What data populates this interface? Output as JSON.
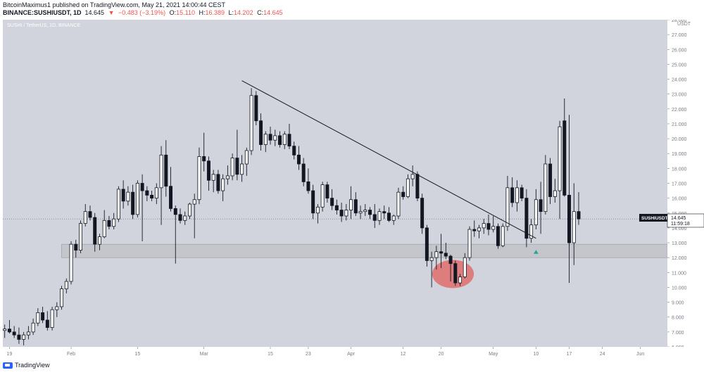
{
  "header": {
    "line1": "BitcoinMaximus1 published on TradingView.com, May 21, 2021 14:00:44 CEST",
    "symbol": "BINANCE:SUSHIUSDT, 1D",
    "last": "14.645",
    "change": "−0.483 (−3.19%)",
    "o_label": "O:",
    "o": "15.110",
    "h_label": "H:",
    "h": "16.389",
    "l_label": "L:",
    "l": "14.202",
    "c_label": "C:",
    "c": "14.645"
  },
  "pane_label": "SUSHI / TetherUS, 1D, BINANCE",
  "price_tag": {
    "symbol": "SUSHIUSDT",
    "price": "14.645",
    "countdown": "11:59:18"
  },
  "footer": {
    "brand": "TradingView"
  },
  "colors": {
    "bull": "#ffffff",
    "bear": "#131722",
    "plot_bg": "#d1d4dc",
    "zone": "#c4c6cc",
    "ellipse": "#e06666",
    "arrow": "#26a69a"
  },
  "chart_data": {
    "type": "candlestick",
    "y_unit": "USDT",
    "ylim": [
      6.0,
      28.0
    ],
    "y_ticks": [
      "6.000",
      "7.000",
      "8.000",
      "9.000",
      "10.000",
      "11.000",
      "12.000",
      "13.000",
      "14.000",
      "15.000",
      "16.000",
      "17.000",
      "18.000",
      "19.000",
      "20.000",
      "21.000",
      "22.000",
      "23.000",
      "24.000",
      "25.000",
      "26.000",
      "27.000",
      "28.000"
    ],
    "x_ticks": [
      {
        "label": "19",
        "day": 0
      },
      {
        "label": "Feb",
        "day": 13
      },
      {
        "label": "15",
        "day": 27
      },
      {
        "label": "Mar",
        "day": 41
      },
      {
        "label": "15",
        "day": 55
      },
      {
        "label": "23",
        "day": 63
      },
      {
        "label": "Apr",
        "day": 72
      },
      {
        "label": "12",
        "day": 83
      },
      {
        "label": "20",
        "day": 91
      },
      {
        "label": "May",
        "day": 102
      },
      {
        "label": "10",
        "day": 111
      },
      {
        "label": "17",
        "day": 118
      },
      {
        "label": "24",
        "day": 125
      },
      {
        "label": "Jun",
        "day": 133
      }
    ],
    "x_range_days": [
      -1.4,
      138.7
    ],
    "candles": [
      {
        "d": -1,
        "o": 7.1,
        "h": 7.5,
        "l": 6.6,
        "c": 7.2
      },
      {
        "d": 0,
        "o": 7.2,
        "h": 7.8,
        "l": 6.9,
        "c": 7.0
      },
      {
        "d": 1,
        "o": 7.0,
        "h": 7.4,
        "l": 6.6,
        "c": 6.8
      },
      {
        "d": 2,
        "o": 6.8,
        "h": 7.3,
        "l": 6.2,
        "c": 6.5
      },
      {
        "d": 3,
        "o": 6.5,
        "h": 7.0,
        "l": 6.1,
        "c": 6.8
      },
      {
        "d": 4,
        "o": 6.8,
        "h": 7.4,
        "l": 6.5,
        "c": 7.0
      },
      {
        "d": 5,
        "o": 7.0,
        "h": 7.9,
        "l": 6.8,
        "c": 7.6
      },
      {
        "d": 6,
        "o": 7.6,
        "h": 8.6,
        "l": 7.4,
        "c": 8.3
      },
      {
        "d": 7,
        "o": 8.3,
        "h": 8.7,
        "l": 7.6,
        "c": 7.8
      },
      {
        "d": 8,
        "o": 7.8,
        "h": 8.4,
        "l": 7.1,
        "c": 7.3
      },
      {
        "d": 9,
        "o": 7.3,
        "h": 8.7,
        "l": 7.1,
        "c": 8.5
      },
      {
        "d": 10,
        "o": 8.5,
        "h": 9.0,
        "l": 8.0,
        "c": 8.7
      },
      {
        "d": 11,
        "o": 8.7,
        "h": 10.1,
        "l": 8.5,
        "c": 9.9
      },
      {
        "d": 12,
        "o": 9.9,
        "h": 10.6,
        "l": 9.6,
        "c": 10.4
      },
      {
        "d": 13,
        "o": 10.4,
        "h": 13.1,
        "l": 10.2,
        "c": 12.9
      },
      {
        "d": 14,
        "o": 12.9,
        "h": 13.2,
        "l": 12.0,
        "c": 12.5
      },
      {
        "d": 15,
        "o": 12.5,
        "h": 14.5,
        "l": 12.3,
        "c": 14.3
      },
      {
        "d": 16,
        "o": 14.3,
        "h": 15.6,
        "l": 14.1,
        "c": 15.1
      },
      {
        "d": 17,
        "o": 15.1,
        "h": 15.5,
        "l": 14.5,
        "c": 14.7
      },
      {
        "d": 18,
        "o": 14.7,
        "h": 15.0,
        "l": 12.4,
        "c": 12.9
      },
      {
        "d": 19,
        "o": 12.9,
        "h": 13.6,
        "l": 12.5,
        "c": 13.4
      },
      {
        "d": 20,
        "o": 13.4,
        "h": 15.2,
        "l": 13.3,
        "c": 14.5
      },
      {
        "d": 21,
        "o": 14.5,
        "h": 14.8,
        "l": 13.9,
        "c": 14.1
      },
      {
        "d": 22,
        "o": 14.1,
        "h": 15.0,
        "l": 13.9,
        "c": 14.6
      },
      {
        "d": 23,
        "o": 14.6,
        "h": 16.8,
        "l": 14.4,
        "c": 16.6
      },
      {
        "d": 24,
        "o": 16.6,
        "h": 17.2,
        "l": 15.3,
        "c": 15.8
      },
      {
        "d": 25,
        "o": 15.8,
        "h": 16.8,
        "l": 15.5,
        "c": 16.4
      },
      {
        "d": 26,
        "o": 16.4,
        "h": 16.9,
        "l": 14.6,
        "c": 14.9
      },
      {
        "d": 27,
        "o": 14.9,
        "h": 17.2,
        "l": 14.7,
        "c": 17.0
      },
      {
        "d": 28,
        "o": 17.0,
        "h": 17.6,
        "l": 13.1,
        "c": 16.5
      },
      {
        "d": 29,
        "o": 16.5,
        "h": 16.8,
        "l": 15.8,
        "c": 16.2
      },
      {
        "d": 30,
        "o": 16.2,
        "h": 16.5,
        "l": 15.8,
        "c": 16.0
      },
      {
        "d": 31,
        "o": 16.0,
        "h": 17.0,
        "l": 15.6,
        "c": 16.7
      },
      {
        "d": 32,
        "o": 16.7,
        "h": 19.5,
        "l": 14.2,
        "c": 18.9
      },
      {
        "d": 33,
        "o": 18.9,
        "h": 19.9,
        "l": 16.1,
        "c": 16.8
      },
      {
        "d": 34,
        "o": 16.8,
        "h": 18.1,
        "l": 15.1,
        "c": 15.3
      },
      {
        "d": 35,
        "o": 15.3,
        "h": 15.5,
        "l": 11.6,
        "c": 14.9
      },
      {
        "d": 36,
        "o": 14.9,
        "h": 15.3,
        "l": 14.3,
        "c": 14.5
      },
      {
        "d": 37,
        "o": 14.5,
        "h": 15.1,
        "l": 14.2,
        "c": 14.8
      },
      {
        "d": 38,
        "o": 14.8,
        "h": 15.7,
        "l": 14.6,
        "c": 15.6
      },
      {
        "d": 39,
        "o": 15.6,
        "h": 16.3,
        "l": 13.3,
        "c": 15.9
      },
      {
        "d": 40,
        "o": 15.9,
        "h": 19.4,
        "l": 15.6,
        "c": 18.8
      },
      {
        "d": 41,
        "o": 18.8,
        "h": 20.4,
        "l": 17.8,
        "c": 18.5
      },
      {
        "d": 42,
        "o": 18.5,
        "h": 18.8,
        "l": 16.5,
        "c": 17.2
      },
      {
        "d": 43,
        "o": 17.2,
        "h": 17.9,
        "l": 16.4,
        "c": 17.6
      },
      {
        "d": 44,
        "o": 17.6,
        "h": 17.9,
        "l": 16.3,
        "c": 16.5
      },
      {
        "d": 45,
        "o": 16.5,
        "h": 17.6,
        "l": 15.8,
        "c": 17.3
      },
      {
        "d": 46,
        "o": 17.3,
        "h": 18.2,
        "l": 16.9,
        "c": 17.5
      },
      {
        "d": 47,
        "o": 17.5,
        "h": 19.0,
        "l": 17.2,
        "c": 18.7
      },
      {
        "d": 48,
        "o": 18.7,
        "h": 20.6,
        "l": 17.2,
        "c": 17.6
      },
      {
        "d": 49,
        "o": 17.6,
        "h": 18.9,
        "l": 17.1,
        "c": 18.3
      },
      {
        "d": 50,
        "o": 18.3,
        "h": 19.4,
        "l": 17.5,
        "c": 19.2
      },
      {
        "d": 51,
        "o": 19.2,
        "h": 23.4,
        "l": 18.9,
        "c": 22.9
      },
      {
        "d": 52,
        "o": 22.9,
        "h": 23.2,
        "l": 20.9,
        "c": 21.2
      },
      {
        "d": 53,
        "o": 21.2,
        "h": 21.7,
        "l": 19.2,
        "c": 19.6
      },
      {
        "d": 54,
        "o": 19.6,
        "h": 20.5,
        "l": 19.1,
        "c": 20.3
      },
      {
        "d": 55,
        "o": 20.3,
        "h": 20.8,
        "l": 19.6,
        "c": 19.9
      },
      {
        "d": 56,
        "o": 19.9,
        "h": 20.6,
        "l": 19.5,
        "c": 20.2
      },
      {
        "d": 57,
        "o": 20.2,
        "h": 20.5,
        "l": 19.4,
        "c": 19.6
      },
      {
        "d": 58,
        "o": 19.6,
        "h": 20.5,
        "l": 19.3,
        "c": 20.3
      },
      {
        "d": 59,
        "o": 20.3,
        "h": 21.0,
        "l": 19.3,
        "c": 19.5
      },
      {
        "d": 60,
        "o": 19.5,
        "h": 19.8,
        "l": 18.6,
        "c": 18.9
      },
      {
        "d": 61,
        "o": 18.9,
        "h": 19.5,
        "l": 17.9,
        "c": 18.3
      },
      {
        "d": 62,
        "o": 18.3,
        "h": 18.7,
        "l": 16.8,
        "c": 17.1
      },
      {
        "d": 63,
        "o": 17.1,
        "h": 18.0,
        "l": 16.3,
        "c": 16.5
      },
      {
        "d": 64,
        "o": 16.5,
        "h": 16.9,
        "l": 14.6,
        "c": 15.0
      },
      {
        "d": 65,
        "o": 15.0,
        "h": 15.6,
        "l": 14.3,
        "c": 15.4
      },
      {
        "d": 66,
        "o": 15.4,
        "h": 17.1,
        "l": 15.1,
        "c": 16.9
      },
      {
        "d": 67,
        "o": 16.9,
        "h": 17.1,
        "l": 15.7,
        "c": 16.0
      },
      {
        "d": 68,
        "o": 16.0,
        "h": 16.6,
        "l": 15.2,
        "c": 15.5
      },
      {
        "d": 69,
        "o": 15.5,
        "h": 15.9,
        "l": 14.9,
        "c": 15.2
      },
      {
        "d": 70,
        "o": 15.2,
        "h": 15.7,
        "l": 14.4,
        "c": 14.8
      },
      {
        "d": 71,
        "o": 14.8,
        "h": 15.6,
        "l": 14.5,
        "c": 15.2
      },
      {
        "d": 72,
        "o": 15.2,
        "h": 16.8,
        "l": 14.6,
        "c": 15.9
      },
      {
        "d": 73,
        "o": 15.9,
        "h": 16.4,
        "l": 14.8,
        "c": 15.0
      },
      {
        "d": 74,
        "o": 15.0,
        "h": 15.5,
        "l": 14.6,
        "c": 15.1
      },
      {
        "d": 75,
        "o": 15.1,
        "h": 15.6,
        "l": 14.8,
        "c": 15.2
      },
      {
        "d": 76,
        "o": 15.2,
        "h": 15.4,
        "l": 14.6,
        "c": 14.9
      },
      {
        "d": 77,
        "o": 14.9,
        "h": 15.6,
        "l": 14.0,
        "c": 14.5
      },
      {
        "d": 78,
        "o": 14.5,
        "h": 15.3,
        "l": 14.2,
        "c": 15.1
      },
      {
        "d": 79,
        "o": 15.1,
        "h": 15.5,
        "l": 14.6,
        "c": 15.0
      },
      {
        "d": 80,
        "o": 15.0,
        "h": 15.4,
        "l": 14.4,
        "c": 14.5
      },
      {
        "d": 81,
        "o": 14.5,
        "h": 14.9,
        "l": 14.2,
        "c": 14.8
      },
      {
        "d": 82,
        "o": 14.8,
        "h": 16.7,
        "l": 14.6,
        "c": 16.4
      },
      {
        "d": 83,
        "o": 16.4,
        "h": 16.8,
        "l": 15.9,
        "c": 16.1
      },
      {
        "d": 84,
        "o": 16.1,
        "h": 17.6,
        "l": 16.0,
        "c": 17.3
      },
      {
        "d": 85,
        "o": 17.3,
        "h": 18.2,
        "l": 16.8,
        "c": 17.6
      },
      {
        "d": 86,
        "o": 17.6,
        "h": 17.8,
        "l": 15.8,
        "c": 16.0
      },
      {
        "d": 87,
        "o": 16.0,
        "h": 16.3,
        "l": 13.6,
        "c": 14.0
      },
      {
        "d": 88,
        "o": 14.0,
        "h": 14.2,
        "l": 11.4,
        "c": 11.8
      },
      {
        "d": 89,
        "o": 11.8,
        "h": 12.4,
        "l": 10.0,
        "c": 12.0
      },
      {
        "d": 90,
        "o": 12.0,
        "h": 12.8,
        "l": 11.2,
        "c": 12.4
      },
      {
        "d": 91,
        "o": 12.4,
        "h": 13.6,
        "l": 11.3,
        "c": 12.3
      },
      {
        "d": 92,
        "o": 12.3,
        "h": 13.0,
        "l": 11.9,
        "c": 12.1
      },
      {
        "d": 93,
        "o": 12.1,
        "h": 12.2,
        "l": 10.4,
        "c": 11.6
      },
      {
        "d": 94,
        "o": 11.6,
        "h": 11.8,
        "l": 10.1,
        "c": 10.3
      },
      {
        "d": 95,
        "o": 10.3,
        "h": 10.9,
        "l": 10.1,
        "c": 10.7
      },
      {
        "d": 96,
        "o": 10.7,
        "h": 12.3,
        "l": 10.6,
        "c": 12.0
      },
      {
        "d": 97,
        "o": 12.0,
        "h": 14.1,
        "l": 11.8,
        "c": 13.9
      },
      {
        "d": 98,
        "o": 13.9,
        "h": 14.5,
        "l": 13.4,
        "c": 13.8
      },
      {
        "d": 99,
        "o": 13.8,
        "h": 14.2,
        "l": 13.3,
        "c": 14.0
      },
      {
        "d": 100,
        "o": 14.0,
        "h": 14.6,
        "l": 13.6,
        "c": 14.3
      },
      {
        "d": 101,
        "o": 14.3,
        "h": 14.9,
        "l": 13.5,
        "c": 13.9
      },
      {
        "d": 102,
        "o": 13.9,
        "h": 14.8,
        "l": 13.7,
        "c": 14.1
      },
      {
        "d": 103,
        "o": 14.1,
        "h": 14.3,
        "l": 12.6,
        "c": 12.8
      },
      {
        "d": 104,
        "o": 12.8,
        "h": 14.3,
        "l": 12.7,
        "c": 14.1
      },
      {
        "d": 105,
        "o": 14.1,
        "h": 17.5,
        "l": 13.8,
        "c": 16.7
      },
      {
        "d": 106,
        "o": 16.7,
        "h": 17.4,
        "l": 15.4,
        "c": 15.7
      },
      {
        "d": 107,
        "o": 15.7,
        "h": 17.2,
        "l": 15.1,
        "c": 16.7
      },
      {
        "d": 108,
        "o": 16.7,
        "h": 16.9,
        "l": 15.8,
        "c": 16.0
      },
      {
        "d": 109,
        "o": 16.0,
        "h": 16.6,
        "l": 12.7,
        "c": 13.3
      },
      {
        "d": 110,
        "o": 13.3,
        "h": 14.6,
        "l": 13.0,
        "c": 14.2
      },
      {
        "d": 111,
        "o": 14.2,
        "h": 16.6,
        "l": 13.9,
        "c": 15.9
      },
      {
        "d": 112,
        "o": 15.9,
        "h": 17.1,
        "l": 13.6,
        "c": 15.1
      },
      {
        "d": 113,
        "o": 15.1,
        "h": 18.9,
        "l": 14.9,
        "c": 18.3
      },
      {
        "d": 114,
        "o": 18.3,
        "h": 18.7,
        "l": 15.6,
        "c": 16.1
      },
      {
        "d": 115,
        "o": 16.1,
        "h": 17.3,
        "l": 15.7,
        "c": 16.5
      },
      {
        "d": 116,
        "o": 16.5,
        "h": 21.2,
        "l": 14.6,
        "c": 20.8
      },
      {
        "d": 117,
        "o": 21.2,
        "h": 22.7,
        "l": 16.1,
        "c": 16.2
      },
      {
        "d": 118,
        "o": 16.2,
        "h": 21.6,
        "l": 10.3,
        "c": 13.0
      },
      {
        "d": 119,
        "o": 13.0,
        "h": 17.0,
        "l": 11.5,
        "c": 15.1
      },
      {
        "d": 120,
        "o": 15.1,
        "h": 16.4,
        "l": 14.2,
        "c": 14.6
      }
    ],
    "annotations": {
      "trendline": {
        "from": {
          "day": 49,
          "price": 23.9
        },
        "to": {
          "day": 111,
          "price": 13.3
        }
      },
      "support_zone": {
        "from_day": 11,
        "to_day": 138.7,
        "low": 12.0,
        "high": 12.9
      },
      "highlight_ellipse": {
        "center_day": 93.5,
        "center_price": 10.9,
        "rx_days": 4.4,
        "ry_price": 0.95
      },
      "up_arrow": {
        "day": 111,
        "price": 12.4
      }
    }
  }
}
